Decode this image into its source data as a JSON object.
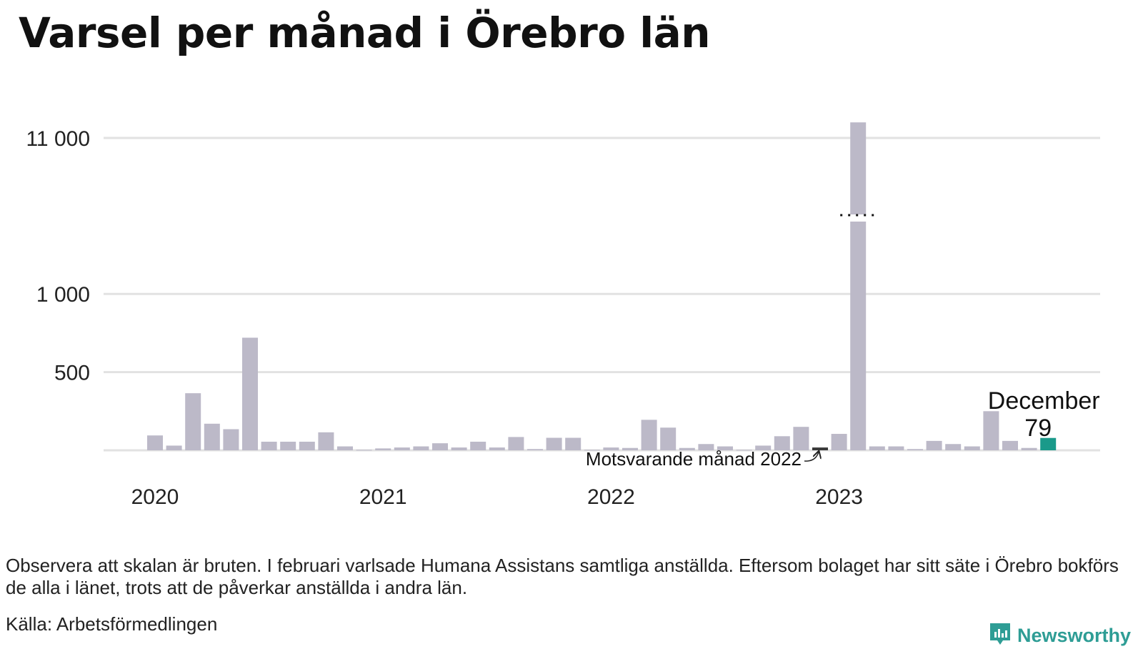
{
  "title": "Varsel per månad i Örebro län",
  "note": "Observera att skalan är bruten. I februari varlsade Humana Assistans samtliga anställda. Eftersom bolaget har sitt säte i Örebro bokförs de alla i länet, trots att de påverkar anställda i andra län.",
  "source": "Källa: Arbetsförmedlingen",
  "brand": {
    "name": "Newsworthy",
    "icon": "newsworthy-logo-icon"
  },
  "colors": {
    "bar": "#bcb9c8",
    "highlight": "#1a9a8a",
    "comparison": "#3a3a3a",
    "grid": "#e2e2e2",
    "brand": "#2e9d95"
  },
  "chart_data": {
    "type": "bar",
    "broken_axis": true,
    "y_ticks": [
      500,
      1000,
      11000
    ],
    "y_tick_labels": [
      "500",
      "1 000",
      "11 000"
    ],
    "x_year_labels": [
      "2020",
      "2021",
      "2022",
      "2023"
    ],
    "months": [
      "2020-01",
      "2020-02",
      "2020-03",
      "2020-04",
      "2020-05",
      "2020-06",
      "2020-07",
      "2020-08",
      "2020-09",
      "2020-10",
      "2020-11",
      "2020-12",
      "2021-01",
      "2021-02",
      "2021-03",
      "2021-04",
      "2021-05",
      "2021-06",
      "2021-07",
      "2021-08",
      "2021-09",
      "2021-10",
      "2021-11",
      "2021-12",
      "2022-01",
      "2022-02",
      "2022-03",
      "2022-04",
      "2022-05",
      "2022-06",
      "2022-07",
      "2022-08",
      "2022-09",
      "2022-10",
      "2022-11",
      "2022-12",
      "2023-01",
      "2023-02",
      "2023-03",
      "2023-04",
      "2023-05",
      "2023-06",
      "2023-07",
      "2023-08",
      "2023-09",
      "2023-10",
      "2023-11",
      "2023-12"
    ],
    "values": [
      95,
      30,
      365,
      170,
      135,
      720,
      55,
      55,
      55,
      115,
      25,
      3,
      12,
      18,
      25,
      45,
      18,
      55,
      18,
      85,
      8,
      80,
      80,
      3,
      18,
      15,
      195,
      145,
      15,
      40,
      25,
      3,
      30,
      90,
      150,
      18,
      105,
      12000,
      25,
      25,
      8,
      60,
      40,
      25,
      250,
      60,
      15,
      79
    ],
    "highlight": {
      "label": "December",
      "value": "79"
    },
    "comparison": {
      "label": "Motsvarande månad 2022",
      "month": "2022-12"
    }
  }
}
